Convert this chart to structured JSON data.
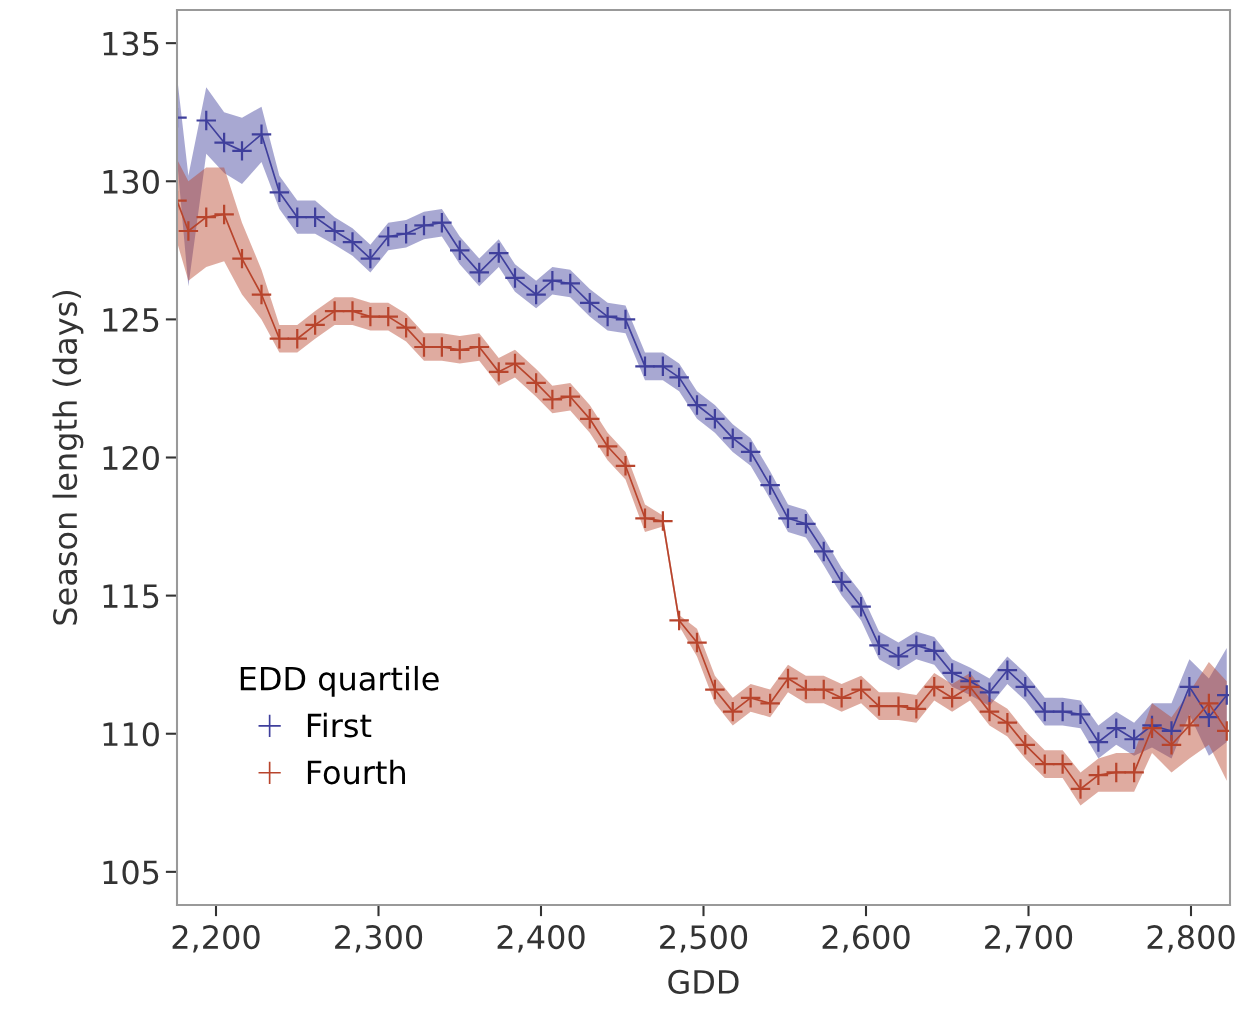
{
  "chart_data": {
    "type": "line",
    "xlabel": "GDD",
    "ylabel": "Season length (days)",
    "legend_title": "EDD quartile",
    "legend": "bottom left",
    "grid": false,
    "marker": "cross",
    "line_style": "solid",
    "x": [
      2176,
      2183,
      2194,
      2205,
      2216,
      2228,
      2239,
      2250,
      2261,
      2273,
      2284,
      2295,
      2306,
      2317,
      2328,
      2339,
      2350,
      2362,
      2374,
      2384,
      2397,
      2407,
      2418,
      2430,
      2441,
      2452,
      2464,
      2475,
      2485,
      2496,
      2507,
      2518,
      2529,
      2541,
      2552,
      2563,
      2574,
      2585,
      2597,
      2608,
      2620,
      2631,
      2642,
      2653,
      2664,
      2676,
      2687,
      2698,
      2710,
      2721,
      2732,
      2743,
      2754,
      2765,
      2776,
      2788,
      2799,
      2811,
      2822
    ],
    "xlim": [
      2176,
      2824
    ],
    "xticks": [
      {
        "value": 2200,
        "label": "2,200"
      },
      {
        "value": 2300,
        "label": "2,300"
      },
      {
        "value": 2400,
        "label": "2,400"
      },
      {
        "value": 2500,
        "label": "2,500"
      },
      {
        "value": 2600,
        "label": "2,600"
      },
      {
        "value": 2700,
        "label": "2,700"
      },
      {
        "value": 2800,
        "label": "2,800"
      }
    ],
    "ylim": [
      103.8,
      136.2
    ],
    "yticks": [
      105,
      110,
      115,
      120,
      125,
      130,
      135
    ],
    "series": [
      {
        "name": "First",
        "color": "#3f3f9c",
        "values": [
          132.3,
          null,
          132.2,
          131.4,
          131.1,
          131.7,
          129.6,
          128.7,
          128.7,
          128.2,
          127.8,
          127.2,
          128.0,
          128.1,
          128.4,
          128.5,
          127.5,
          126.7,
          127.4,
          126.5,
          125.9,
          126.4,
          126.3,
          125.6,
          125.1,
          125.0,
          123.3,
          123.3,
          122.9,
          121.9,
          121.4,
          120.7,
          120.2,
          119.0,
          117.8,
          117.6,
          116.6,
          115.5,
          114.6,
          113.2,
          112.8,
          113.2,
          113.0,
          112.2,
          111.9,
          111.5,
          112.3,
          111.7,
          110.8,
          110.8,
          110.7,
          109.7,
          110.2,
          109.8,
          110.3,
          110.1,
          111.7,
          110.6,
          111.4
        ],
        "lower": [
          130.8,
          126.2,
          131.0,
          130.3,
          129.9,
          130.7,
          129.0,
          128.1,
          128.1,
          127.7,
          127.3,
          126.7,
          127.5,
          127.6,
          127.9,
          128.0,
          127.0,
          126.2,
          126.9,
          126.0,
          125.4,
          125.9,
          125.8,
          125.1,
          124.6,
          124.5,
          122.8,
          122.8,
          122.4,
          121.4,
          120.9,
          120.2,
          119.7,
          118.5,
          117.3,
          117.1,
          116.1,
          115.0,
          114.1,
          112.7,
          112.3,
          112.7,
          112.5,
          111.7,
          111.4,
          111.0,
          111.8,
          111.2,
          110.3,
          110.3,
          110.2,
          109.1,
          109.6,
          109.2,
          109.5,
          109.1,
          110.7,
          109.2,
          109.7
        ],
        "upper": [
          133.8,
          130.2,
          133.4,
          132.5,
          132.3,
          132.7,
          130.2,
          129.3,
          129.3,
          128.7,
          128.3,
          127.7,
          128.5,
          128.6,
          128.9,
          129.0,
          128.0,
          127.2,
          127.9,
          127.0,
          126.4,
          126.9,
          126.8,
          126.1,
          125.6,
          125.5,
          123.8,
          123.8,
          123.4,
          122.4,
          121.9,
          121.2,
          120.7,
          119.5,
          118.3,
          118.1,
          117.1,
          116.0,
          115.1,
          113.7,
          113.3,
          113.7,
          113.5,
          112.7,
          112.4,
          112.0,
          112.8,
          112.2,
          111.3,
          111.3,
          111.2,
          110.3,
          110.8,
          110.4,
          111.1,
          111.1,
          112.7,
          112.0,
          113.1
        ]
      },
      {
        "name": "Fourth",
        "color": "#b8442c",
        "values": [
          129.3,
          128.2,
          128.7,
          128.8,
          127.2,
          125.9,
          124.3,
          124.3,
          124.8,
          125.3,
          125.3,
          125.1,
          125.1,
          124.7,
          124.0,
          124.0,
          123.9,
          124.0,
          123.1,
          123.4,
          122.7,
          122.1,
          122.2,
          121.4,
          120.4,
          119.7,
          117.8,
          117.7,
          114.1,
          113.3,
          111.6,
          110.8,
          111.3,
          111.1,
          112.0,
          111.6,
          111.6,
          111.3,
          111.6,
          111.0,
          111.0,
          110.9,
          111.7,
          111.3,
          111.7,
          110.8,
          110.4,
          109.6,
          108.9,
          108.9,
          108.0,
          108.5,
          108.6,
          108.6,
          110.2,
          109.6,
          110.3,
          111.1,
          110.1
        ],
        "lower": [
          127.8,
          126.4,
          126.9,
          127.1,
          125.9,
          125.0,
          123.8,
          123.8,
          124.3,
          124.8,
          124.8,
          124.6,
          124.6,
          124.2,
          123.5,
          123.5,
          123.4,
          123.5,
          122.6,
          122.9,
          122.2,
          121.6,
          121.7,
          120.9,
          119.9,
          119.2,
          117.3,
          117.5,
          113.9,
          112.8,
          111.1,
          110.3,
          110.8,
          110.6,
          111.5,
          111.1,
          111.1,
          110.8,
          111.1,
          110.5,
          110.5,
          110.4,
          111.2,
          110.8,
          111.2,
          110.3,
          109.9,
          109.1,
          108.4,
          108.4,
          107.4,
          107.9,
          107.9,
          107.9,
          109.3,
          108.6,
          109.1,
          109.6,
          108.3
        ],
        "upper": [
          130.8,
          130.0,
          130.5,
          130.5,
          128.5,
          126.8,
          124.8,
          124.8,
          125.3,
          125.8,
          125.8,
          125.6,
          125.6,
          125.2,
          124.5,
          124.5,
          124.4,
          124.5,
          123.6,
          123.9,
          123.2,
          122.6,
          122.7,
          121.9,
          120.9,
          120.2,
          118.3,
          117.9,
          114.3,
          113.8,
          112.1,
          111.3,
          111.8,
          111.6,
          112.5,
          112.1,
          112.1,
          111.8,
          112.1,
          111.5,
          111.5,
          111.4,
          112.2,
          111.8,
          112.2,
          111.3,
          110.9,
          110.1,
          109.4,
          109.4,
          108.6,
          109.1,
          109.3,
          109.3,
          111.1,
          110.6,
          111.5,
          112.6,
          111.9
        ]
      }
    ]
  }
}
